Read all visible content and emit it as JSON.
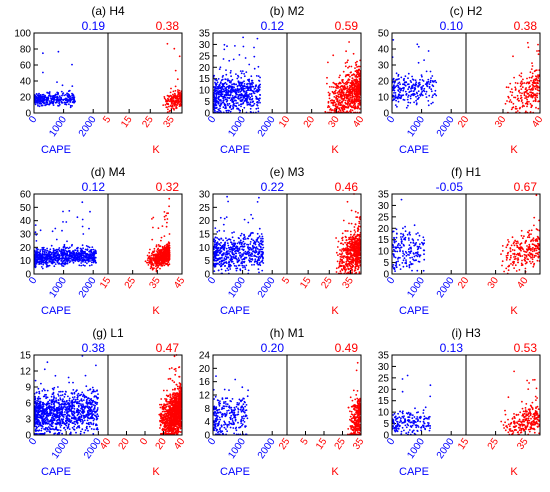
{
  "colors": {
    "cape": "#0000ff",
    "k": "#ff0000",
    "frame": "#000000"
  },
  "chart_data": [
    {
      "type": "scatter",
      "title": "(a) H4",
      "cape_r": "0.19",
      "k_r": "0.38",
      "yticks": [
        "0",
        "20",
        "40",
        "60",
        "80",
        "100"
      ],
      "ylim": [
        0,
        100
      ],
      "cape_xticks": [
        "0",
        "1000",
        "2000"
      ],
      "cape_xlim": [
        0,
        2500
      ],
      "k_xticks": [
        "5",
        "15",
        "25",
        "35"
      ],
      "k_xlim": [
        5,
        40
      ],
      "xlabel_cape": "CAPE",
      "xlabel_k": "K",
      "cape_cloud": {
        "x_range": [
          0,
          1400
        ],
        "y_center": 17,
        "y_spread": 6,
        "n": 330
      },
      "k_cloud": {
        "x_range": [
          31,
          40
        ],
        "y_center": 16,
        "y_spread": 8,
        "n": 200
      }
    },
    {
      "type": "scatter",
      "title": "(b) M2",
      "cape_r": "0.12",
      "k_r": "0.59",
      "yticks": [
        "0",
        "5",
        "10",
        "15",
        "20",
        "25",
        "30",
        "35"
      ],
      "ylim": [
        0,
        35
      ],
      "cape_xticks": [
        "0",
        "1000",
        "2000"
      ],
      "cape_xlim": [
        0,
        2500
      ],
      "k_xticks": [
        "10",
        "20",
        "30",
        "40"
      ],
      "k_xlim": [
        10,
        40
      ],
      "xlabel_cape": "CAPE",
      "xlabel_k": "K",
      "cape_cloud": {
        "x_range": [
          0,
          1600
        ],
        "y_center": 8,
        "y_spread": 6,
        "n": 650
      },
      "k_cloud": {
        "x_range": [
          25,
          40
        ],
        "y_center": 8,
        "y_spread": 7,
        "n": 650
      }
    },
    {
      "type": "scatter",
      "title": "(c) H2",
      "cape_r": "0.10",
      "k_r": "0.38",
      "yticks": [
        "0",
        "10",
        "20",
        "30",
        "40",
        "50"
      ],
      "ylim": [
        0,
        50
      ],
      "cape_xticks": [
        "0",
        "1000",
        "2000"
      ],
      "cape_xlim": [
        0,
        2500
      ],
      "k_xticks": [
        "20",
        "30",
        "40"
      ],
      "k_xlim": [
        20,
        40
      ],
      "xlabel_cape": "CAPE",
      "xlabel_k": "K",
      "cape_cloud": {
        "x_range": [
          0,
          1500
        ],
        "y_center": 15,
        "y_spread": 7,
        "n": 250
      },
      "k_cloud": {
        "x_range": [
          30,
          40
        ],
        "y_center": 13,
        "y_spread": 9,
        "n": 230
      }
    },
    {
      "type": "scatter",
      "title": "(d) M4",
      "cape_r": "0.12",
      "k_r": "0.32",
      "yticks": [
        "0",
        "10",
        "20",
        "30",
        "40",
        "50",
        "60"
      ],
      "ylim": [
        0,
        65
      ],
      "cape_xticks": [
        "0",
        "1000",
        "2000"
      ],
      "cape_xlim": [
        0,
        2500
      ],
      "k_xticks": [
        "15",
        "25",
        "35",
        "45"
      ],
      "k_xlim": [
        15,
        45
      ],
      "xlabel_cape": "CAPE",
      "xlabel_k": "K",
      "cape_cloud": {
        "x_range": [
          0,
          2100
        ],
        "y_center": 14,
        "y_spread": 5,
        "n": 800
      },
      "k_cloud": {
        "x_range": [
          30,
          40
        ],
        "y_center": 14,
        "y_spread": 6,
        "n": 520
      }
    },
    {
      "type": "scatter",
      "title": "(e) M3",
      "cape_r": "0.22",
      "k_r": "0.46",
      "yticks": [
        "0",
        "5",
        "10",
        "15",
        "20",
        "25",
        "30"
      ],
      "ylim": [
        0,
        30
      ],
      "cape_xticks": [
        "0",
        "1000",
        "2000"
      ],
      "cape_xlim": [
        0,
        2500
      ],
      "k_xticks": [
        "5",
        "15",
        "25",
        "35"
      ],
      "k_xlim": [
        5,
        40
      ],
      "xlabel_cape": "CAPE",
      "xlabel_k": "K",
      "cape_cloud": {
        "x_range": [
          0,
          1700
        ],
        "y_center": 8,
        "y_spread": 5,
        "n": 560
      },
      "k_cloud": {
        "x_range": [
          28,
          40
        ],
        "y_center": 8,
        "y_spread": 6,
        "n": 600
      }
    },
    {
      "type": "scatter",
      "title": "(f) H1",
      "cape_r": "-0.05",
      "k_r": "0.67",
      "yticks": [
        "0",
        "5",
        "10",
        "15",
        "20",
        "25",
        "30",
        "35"
      ],
      "ylim": [
        0,
        35
      ],
      "cape_xticks": [
        "0",
        "1000",
        "2000"
      ],
      "cape_xlim": [
        0,
        2500
      ],
      "k_xticks": [
        "20",
        "30",
        "40"
      ],
      "k_xlim": [
        20,
        45
      ],
      "xlabel_cape": "CAPE",
      "xlabel_k": "K",
      "cape_cloud": {
        "x_range": [
          0,
          1100
        ],
        "y_center": 10,
        "y_spread": 7,
        "n": 180
      },
      "k_cloud": {
        "x_range": [
          30,
          45
        ],
        "y_center": 10,
        "y_spread": 6,
        "n": 230
      }
    },
    {
      "type": "scatter",
      "title": "(g) L1",
      "cape_r": "0.38",
      "k_r": "0.47",
      "yticks": [
        "0",
        "3",
        "6",
        "9",
        "12",
        "15"
      ],
      "ylim": [
        0,
        15
      ],
      "cape_xticks": [
        "0",
        "1000",
        "2000"
      ],
      "cape_xlim": [
        0,
        2300
      ],
      "k_xticks": [
        "40",
        "20",
        "0",
        "20",
        "40"
      ],
      "k_xlim": [
        -40,
        40
      ],
      "xlabel_cape": "CAPE",
      "xlabel_k": "K",
      "cape_cloud": {
        "x_range": [
          0,
          2000
        ],
        "y_center": 4,
        "y_spread": 3,
        "n": 1100
      },
      "k_cloud": {
        "x_range": [
          15,
          40
        ],
        "y_center": 4,
        "y_spread": 3,
        "n": 1100
      }
    },
    {
      "type": "scatter",
      "title": "(h) M1",
      "cape_r": "0.20",
      "k_r": "0.49",
      "yticks": [
        "0",
        "4",
        "8",
        "12",
        "16",
        "20",
        "24"
      ],
      "ylim": [
        0,
        25
      ],
      "cape_xticks": [
        "0",
        "1000",
        "2000"
      ],
      "cape_xlim": [
        0,
        2500
      ],
      "k_xticks": [
        "25",
        "5",
        "15",
        "25",
        "35"
      ],
      "k_xlim": [
        -25,
        40
      ],
      "xlabel_cape": "CAPE",
      "xlabel_k": "K",
      "cape_cloud": {
        "x_range": [
          0,
          1200
        ],
        "y_center": 6,
        "y_spread": 5,
        "n": 270
      },
      "k_cloud": {
        "x_range": [
          28,
          40
        ],
        "y_center": 5,
        "y_spread": 5,
        "n": 330
      }
    },
    {
      "type": "scatter",
      "title": "(i) H3",
      "cape_r": "0.13",
      "k_r": "0.53",
      "yticks": [
        "0",
        "5",
        "10",
        "15",
        "20",
        "25",
        "30",
        "35"
      ],
      "ylim": [
        0,
        35
      ],
      "cape_xticks": [
        "0",
        "1000",
        "2000"
      ],
      "cape_xlim": [
        0,
        2500
      ],
      "k_xticks": [
        "15",
        "25",
        "35"
      ],
      "k_xlim": [
        15,
        40
      ],
      "xlabel_cape": "CAPE",
      "xlabel_k": "K",
      "cape_cloud": {
        "x_range": [
          0,
          1300
        ],
        "y_center": 5,
        "y_spread": 4,
        "n": 200
      },
      "k_cloud": {
        "x_range": [
          26,
          40
        ],
        "y_center": 6,
        "y_spread": 5,
        "n": 260
      }
    }
  ]
}
